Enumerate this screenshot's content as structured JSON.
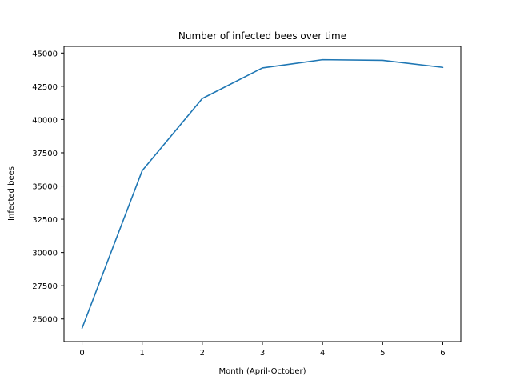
{
  "chart_data": {
    "type": "line",
    "title": "Number of infected bees over time",
    "xlabel": "Month (April-October)",
    "ylabel": "Infected bees",
    "x": [
      0,
      1,
      2,
      3,
      4,
      5,
      6
    ],
    "series": [
      {
        "values": [
          24300,
          36150,
          41580,
          43880,
          44500,
          44450,
          43920
        ],
        "color": "#1f77b4"
      }
    ],
    "xlim": [
      -0.3,
      6.3
    ],
    "ylim": [
      23300,
      45500
    ],
    "xticks": [
      0,
      1,
      2,
      3,
      4,
      5,
      6
    ],
    "yticks": [
      25000,
      27500,
      30000,
      32500,
      35000,
      37500,
      40000,
      42500,
      45000
    ],
    "grid": false,
    "legend": "none"
  }
}
